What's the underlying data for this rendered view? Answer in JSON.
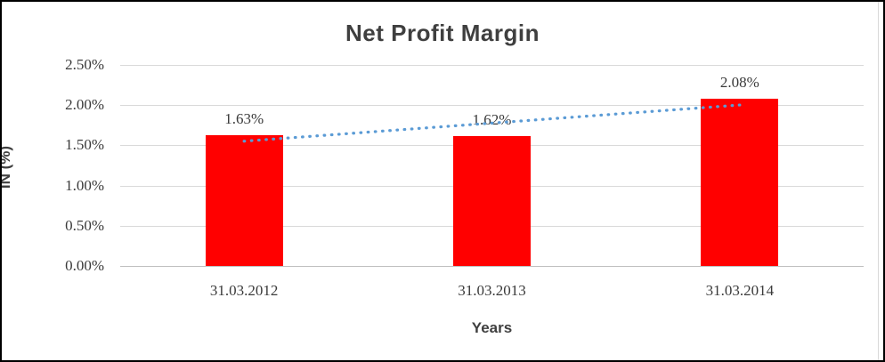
{
  "window": {
    "background": "#ffffff",
    "outer_border_color": "#000000",
    "chart_object_border_color": "#d9d9d9"
  },
  "chart_data": {
    "type": "bar",
    "title": "Net Profit Margin",
    "xlabel": "Years",
    "ylabel": "IN (%)",
    "categories": [
      "31.03.2012",
      "31.03.2013",
      "31.03.2014"
    ],
    "series": [
      {
        "name": "Net Profit Margin",
        "values": [
          1.63,
          1.62,
          2.08
        ]
      }
    ],
    "data_labels": [
      "1.63%",
      "1.62%",
      "2.08%"
    ],
    "y_ticks": [
      "0.00%",
      "0.50%",
      "1.00%",
      "1.50%",
      "2.00%",
      "2.50%"
    ],
    "ylim": [
      0,
      2.5
    ],
    "y_step": 0.5,
    "grid": true,
    "legend": "none",
    "bar_color": "#ff0000",
    "trendline": {
      "type": "linear",
      "style": "dotted",
      "color": "#5b9bd5",
      "start_value": 1.55,
      "end_value": 2.0
    },
    "text_color": "#3f3f3f",
    "gridline_color": "#d9d9d9"
  }
}
